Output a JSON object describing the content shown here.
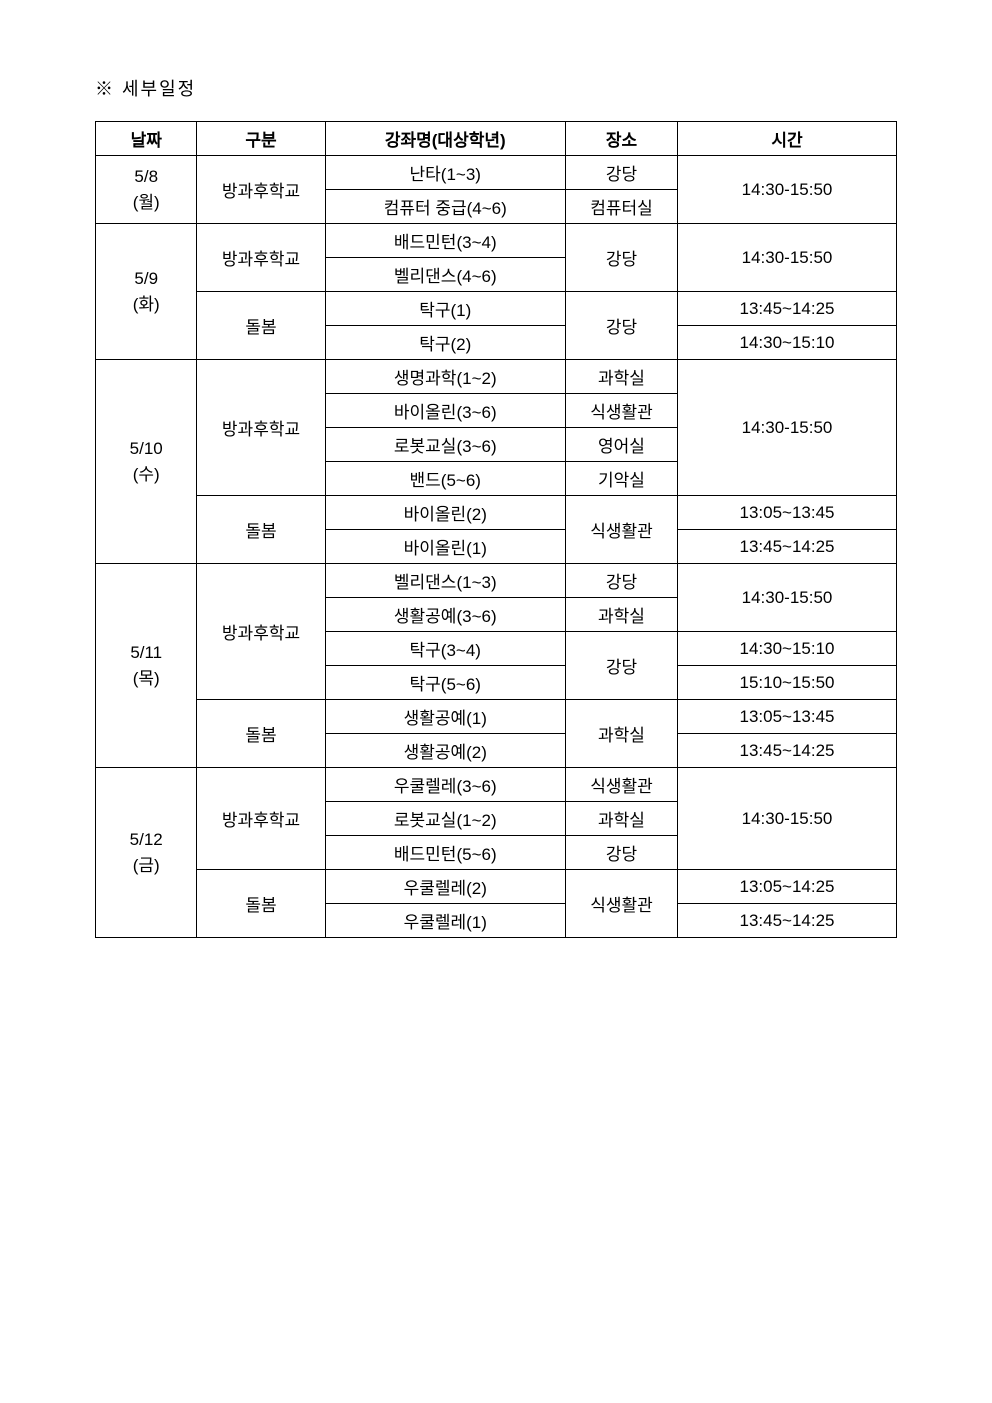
{
  "title": "※ 세부일정",
  "headers": {
    "date": "날짜",
    "type": "구분",
    "course": "강좌명(대상학년)",
    "place": "장소",
    "time": "시간"
  },
  "cells": {
    "r1_date_a": "5/8",
    "r1_date_b": "(월)",
    "r1_type": "방과후학교",
    "r1_course": "난타(1~3)",
    "r1_place": "강당",
    "r1_time": "14:30-15:50",
    "r2_course": "컴퓨터 중급(4~6)",
    "r2_place": "컴퓨터실",
    "r3_date_a": "5/9",
    "r3_date_b": "(화)",
    "r3_type": "방과후학교",
    "r3_course": "배드민턴(3~4)",
    "r3_place": "강당",
    "r3_time": "14:30-15:50",
    "r4_course": "벨리댄스(4~6)",
    "r5_type": "돌봄",
    "r5_course": "탁구(1)",
    "r5_place": "강당",
    "r5_time": "13:45~14:25",
    "r6_course": "탁구(2)",
    "r6_time": "14:30~15:10",
    "r7_date_a": "5/10",
    "r7_date_b": "(수)",
    "r7_type": "방과후학교",
    "r7_course": "생명과학(1~2)",
    "r7_place": "과학실",
    "r7_time": "14:30-15:50",
    "r8_course": "바이올린(3~6)",
    "r8_place": "식생활관",
    "r9_course": "로봇교실(3~6)",
    "r9_place": "영어실",
    "r10_course": "밴드(5~6)",
    "r10_place": "기악실",
    "r11_type": "돌봄",
    "r11_course": "바이올린(2)",
    "r11_place": "식생활관",
    "r11_time": "13:05~13:45",
    "r12_course": "바이올린(1)",
    "r12_time": "13:45~14:25",
    "r13_date_a": "5/11",
    "r13_date_b": "(목)",
    "r13_type": "방과후학교",
    "r13_course": "벨리댄스(1~3)",
    "r13_place": "강당",
    "r13_time": "14:30-15:50",
    "r14_course": "생활공예(3~6)",
    "r14_place": "과학실",
    "r15_course": "탁구(3~4)",
    "r15_place": "강당",
    "r15_time": "14:30~15:10",
    "r16_course": "탁구(5~6)",
    "r16_time": "15:10~15:50",
    "r17_type": "돌봄",
    "r17_course": "생활공예(1)",
    "r17_place": "과학실",
    "r17_time": "13:05~13:45",
    "r18_course": "생활공예(2)",
    "r18_time": "13:45~14:25",
    "r19_date_a": "5/12",
    "r19_date_b": "(금)",
    "r19_type": "방과후학교",
    "r19_course": "우쿨렐레(3~6)",
    "r19_place": "식생활관",
    "r19_time": "14:30-15:50",
    "r20_course": "로봇교실(1~2)",
    "r20_place": "과학실",
    "r21_course": "배드민턴(5~6)",
    "r21_place": "강당",
    "r22_type": "돌봄",
    "r22_course": "우쿨렐레(2)",
    "r22_place": "식생활관",
    "r22_time": "13:05~14:25",
    "r23_course": "우쿨렐레(1)",
    "r23_time": "13:45~14:25"
  }
}
